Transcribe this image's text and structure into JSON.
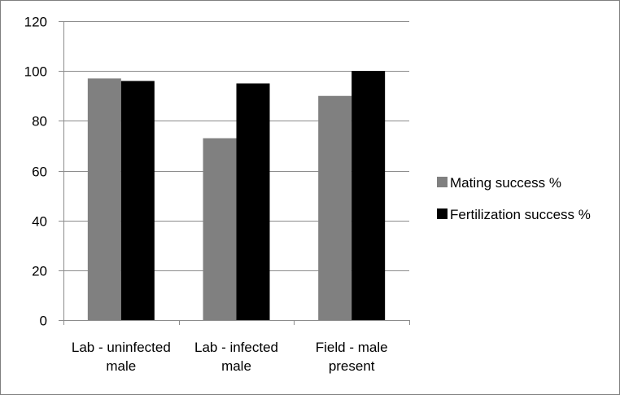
{
  "chart_data": {
    "type": "bar",
    "title": "",
    "xlabel": "",
    "ylabel": "",
    "categories": [
      [
        "Lab - uninfected",
        "male"
      ],
      [
        "Lab - infected",
        "male"
      ],
      [
        "Field - male",
        "present"
      ]
    ],
    "series": [
      {
        "name": "Mating success %",
        "values": [
          97,
          73,
          90
        ],
        "color": "#808080"
      },
      {
        "name": "Fertilization success %",
        "values": [
          96,
          95,
          100
        ],
        "color": "#000000"
      }
    ],
    "ylim": [
      0,
      120
    ],
    "yticks": [
      0,
      20,
      40,
      60,
      80,
      100,
      120
    ],
    "grid": true,
    "legend_position": "right"
  }
}
